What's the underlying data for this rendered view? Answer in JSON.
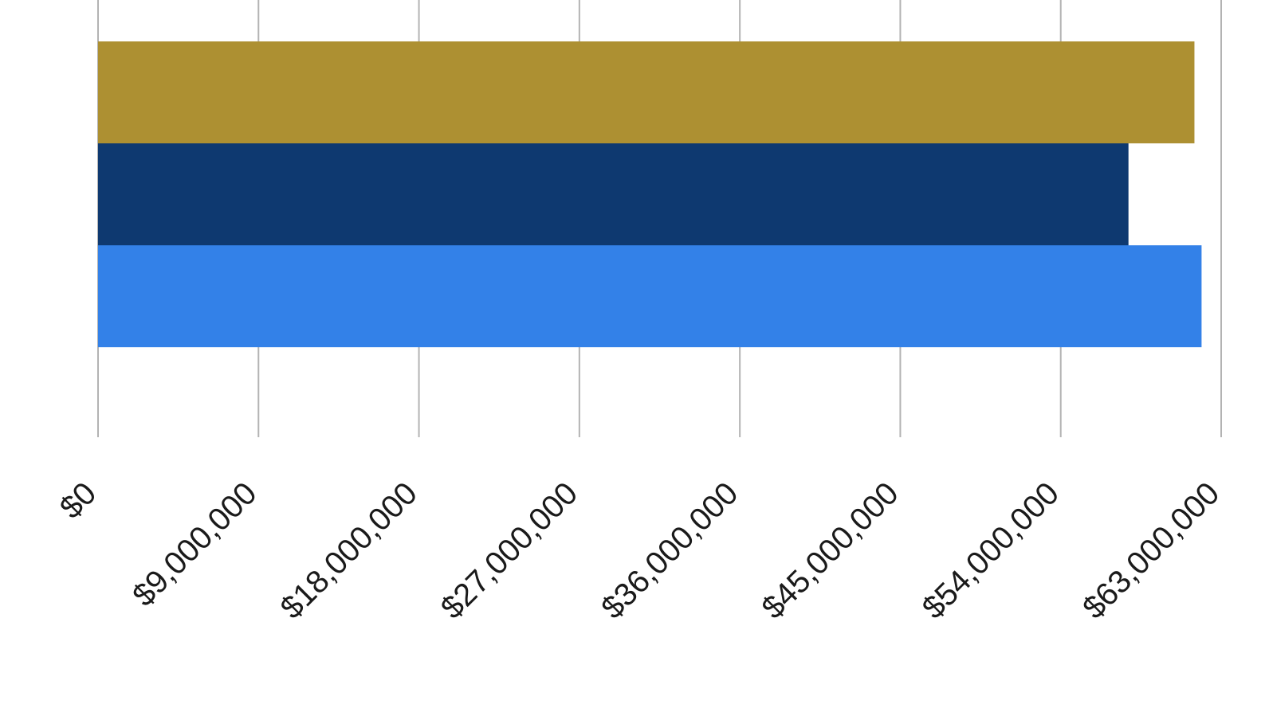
{
  "chart_data": {
    "type": "bar",
    "orientation": "horizontal",
    "title": "",
    "xlabel": "",
    "ylabel": "",
    "xlim": [
      0,
      63000000
    ],
    "x_ticks": [
      0,
      9000000,
      18000000,
      27000000,
      36000000,
      45000000,
      54000000,
      63000000
    ],
    "x_tick_labels": [
      "$0",
      "$9,000,000",
      "$18,000,000",
      "$27,000,000",
      "$36,000,000",
      "$45,000,000",
      "$54,000,000",
      "$63,000,000"
    ],
    "grid": true,
    "legend": "none",
    "categories": [
      ""
    ],
    "series": [
      {
        "values": [
          61500000
        ],
        "color": "#ad9032"
      },
      {
        "values": [
          57800000
        ],
        "color": "#0e3970"
      },
      {
        "values": [
          61900000
        ],
        "color": "#3381e8"
      }
    ]
  }
}
